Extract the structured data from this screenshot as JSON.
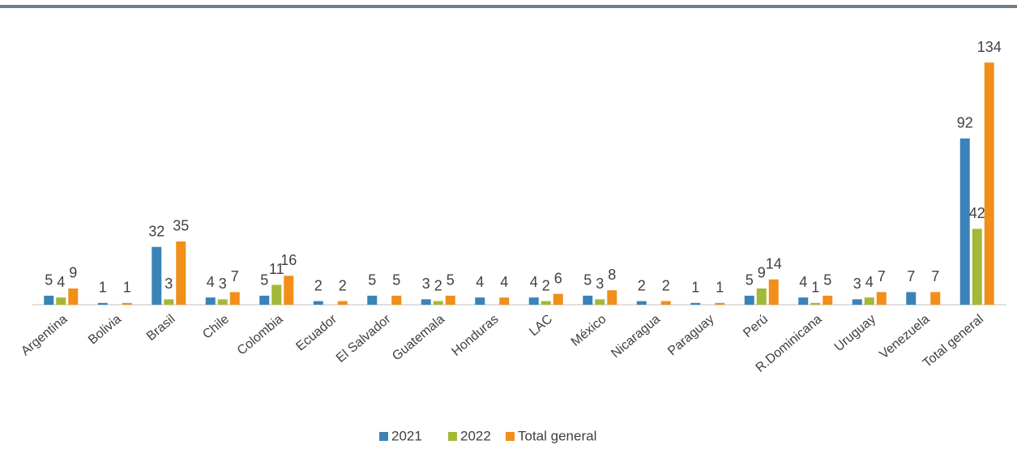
{
  "chart_data": {
    "type": "bar",
    "categories": [
      "Argentina",
      "Bolivia",
      "Brasil",
      "Chile",
      "Colombia",
      "Ecuador",
      "El Salvador",
      "Guatemala",
      "Honduras",
      "LAC",
      "México",
      "Nicaragua",
      "Paraguay",
      "Perú",
      "R.Dominicana",
      "Uruguay",
      "Venezuela",
      "Total general"
    ],
    "series": [
      {
        "name": "2021",
        "color": "#3a83b9",
        "values": [
          5,
          1,
          32,
          4,
          5,
          2,
          5,
          3,
          4,
          4,
          5,
          2,
          1,
          5,
          4,
          3,
          7,
          92
        ]
      },
      {
        "name": "2022",
        "color": "#a4b837",
        "values": [
          4,
          null,
          3,
          3,
          11,
          null,
          null,
          2,
          null,
          2,
          3,
          null,
          null,
          9,
          1,
          4,
          null,
          42
        ]
      },
      {
        "name": "Total general",
        "color": "#f18f1a",
        "values": [
          9,
          1,
          35,
          7,
          16,
          2,
          5,
          5,
          4,
          6,
          8,
          2,
          1,
          14,
          5,
          7,
          7,
          134
        ]
      }
    ],
    "legend": "bottom"
  }
}
